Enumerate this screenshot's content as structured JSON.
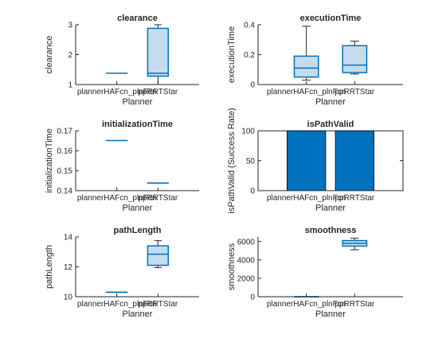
{
  "chart_data": [
    {
      "type": "box",
      "title": "clearance",
      "xlabel": "Planner",
      "ylabel": "clearance",
      "categories": [
        "plannerHAFcn_plnFcn",
        "ppRRTStar"
      ],
      "ylim": [
        1,
        3
      ],
      "yticks": [
        1,
        2,
        3
      ],
      "boxes": [
        {
          "min": 1.38,
          "q1": 1.38,
          "median": 1.38,
          "q3": 1.38,
          "max": 1.38
        },
        {
          "min": 1.0,
          "q1": 1.28,
          "median": 1.38,
          "q3": 2.88,
          "max": 3.0
        }
      ]
    },
    {
      "type": "box",
      "title": "executionTime",
      "xlabel": "Planner",
      "ylabel": "executionTime",
      "categories": [
        "plannerHAFcn_plnFcn",
        "ppRRTStar"
      ],
      "ylim": [
        0,
        0.4
      ],
      "yticks": [
        0,
        0.2,
        0.4
      ],
      "boxes": [
        {
          "min": 0.03,
          "q1": 0.05,
          "median": 0.11,
          "q3": 0.19,
          "max": 0.39
        },
        {
          "min": 0.07,
          "q1": 0.08,
          "median": 0.13,
          "q3": 0.26,
          "max": 0.29
        }
      ]
    },
    {
      "type": "box",
      "title": "initializationTime",
      "xlabel": "Planner",
      "ylabel": "initializationTime",
      "categories": [
        "plannerHAFcn_plnFcn",
        "ppRRTStar"
      ],
      "ylim": [
        0.14,
        0.17
      ],
      "yticks": [
        0.14,
        0.15,
        0.16,
        0.17
      ],
      "boxes": [
        {
          "min": 0.1651,
          "q1": 0.1651,
          "median": 0.1651,
          "q3": 0.1651,
          "max": 0.1651
        },
        {
          "min": 0.1438,
          "q1": 0.1438,
          "median": 0.1438,
          "q3": 0.1438,
          "max": 0.1438
        }
      ]
    },
    {
      "type": "bar",
      "title": "isPathValid",
      "xlabel": "Planner",
      "ylabel": "isPathValid (Success Rate)",
      "categories": [
        "plannerHAFcn_plnFcn",
        "ppRRTStar"
      ],
      "values": [
        100,
        100
      ],
      "ylim": [
        0,
        100
      ],
      "yticks": [
        0,
        50,
        100
      ]
    },
    {
      "type": "box",
      "title": "pathLength",
      "xlabel": "Planner",
      "ylabel": "pathLength",
      "categories": [
        "plannerHAFcn_plnFcn",
        "ppRRTStar"
      ],
      "ylim": [
        10,
        14
      ],
      "yticks": [
        10,
        12,
        14
      ],
      "boxes": [
        {
          "min": 10.3,
          "q1": 10.3,
          "median": 10.3,
          "q3": 10.3,
          "max": 10.3
        },
        {
          "min": 11.95,
          "q1": 12.1,
          "median": 12.85,
          "q3": 13.4,
          "max": 13.75
        }
      ]
    },
    {
      "type": "box",
      "title": "smoothness",
      "xlabel": "Planner",
      "ylabel": "smoothness",
      "categories": [
        "plannerHAFcn_plnFcn",
        "ppRRTStar"
      ],
      "ylim": [
        0,
        6500
      ],
      "yticks": [
        0,
        2000,
        4000,
        6000
      ],
      "boxes": [
        {
          "min": 0,
          "q1": 0,
          "median": 0,
          "q3": 0,
          "max": 0
        },
        {
          "min": 5100,
          "q1": 5500,
          "median": 5800,
          "q3": 6100,
          "max": 6350
        }
      ]
    }
  ],
  "colors": {
    "box_fill": "#c5dcef",
    "box_line": "#0072bd",
    "bar_fill": "#0072bd",
    "whisker": "#262626",
    "axis": "#262626"
  }
}
